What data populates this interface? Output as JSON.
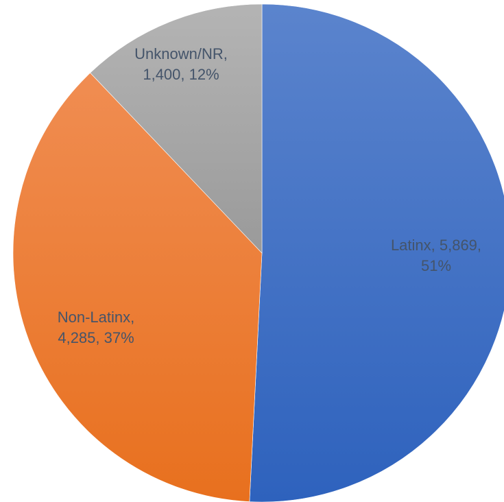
{
  "chart_data": {
    "type": "pie",
    "title": "",
    "start_angle_deg": 0,
    "direction": "clockwise",
    "slices": [
      {
        "label": "Latinx",
        "value": 5869,
        "percent": 51,
        "label_lines": [
          "Latinx, 5,869,",
          "51%"
        ],
        "color_top": "#5b84cd",
        "color_bottom": "#2e62bd"
      },
      {
        "label": "Non-Latinx",
        "value": 4285,
        "percent": 37,
        "label_lines": [
          "Non-Latinx,",
          "4,285, 37%"
        ],
        "color_top": "#f08d52",
        "color_bottom": "#e8701e"
      },
      {
        "label": "Unknown/NR",
        "value": 1400,
        "percent": 12,
        "label_lines": [
          "Unknown/NR,",
          "1,400, 12%"
        ],
        "color_top": "#b4b4b4",
        "color_bottom": "#9a9a9a"
      }
    ],
    "label_color": "#44546a",
    "legend": "none"
  }
}
